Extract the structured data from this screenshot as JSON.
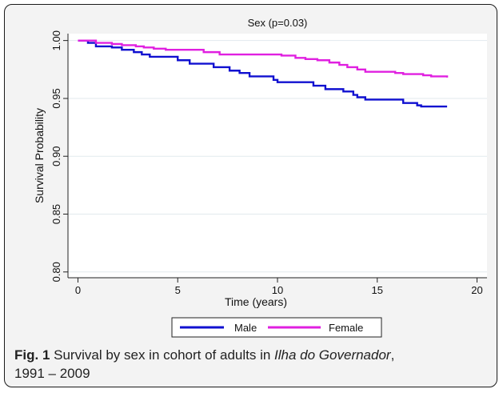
{
  "caption": {
    "label": "Fig. 1",
    "text_before": " Survival by sex in cohort of adults in ",
    "place": "Ilha do Governador",
    "text_after": ",",
    "years": "1991 – 2009"
  },
  "chart_data": {
    "type": "line",
    "title": "Sex (p=0.03)",
    "xlabel": "Time (years)",
    "ylabel": "Survival Probability",
    "xlim": [
      -0.5,
      20.5
    ],
    "ylim": [
      0.795,
      1.006
    ],
    "xticks": [
      0,
      5,
      10,
      15,
      20
    ],
    "yticks": [
      "0.80",
      "0.85",
      "0.90",
      "0.95",
      "1.00"
    ],
    "grid": true,
    "legend_position": "bottom",
    "series": [
      {
        "name": "Male",
        "color": "#1010d0",
        "step": true,
        "points": [
          [
            0,
            1.0
          ],
          [
            0.5,
            0.998
          ],
          [
            0.9,
            0.995
          ],
          [
            1.7,
            0.994
          ],
          [
            2.2,
            0.992
          ],
          [
            2.8,
            0.99
          ],
          [
            3.2,
            0.988
          ],
          [
            3.6,
            0.986
          ],
          [
            5.0,
            0.983
          ],
          [
            5.6,
            0.98
          ],
          [
            6.8,
            0.977
          ],
          [
            7.6,
            0.974
          ],
          [
            8.1,
            0.972
          ],
          [
            8.6,
            0.969
          ],
          [
            9.8,
            0.966
          ],
          [
            10.0,
            0.964
          ],
          [
            11.8,
            0.961
          ],
          [
            12.4,
            0.958
          ],
          [
            13.3,
            0.956
          ],
          [
            13.8,
            0.953
          ],
          [
            14.0,
            0.951
          ],
          [
            14.4,
            0.949
          ],
          [
            16.3,
            0.946
          ],
          [
            17.0,
            0.944
          ],
          [
            17.2,
            0.943
          ],
          [
            18.5,
            0.943
          ]
        ]
      },
      {
        "name": "Female",
        "color": "#e020e0",
        "step": true,
        "points": [
          [
            0,
            1.0
          ],
          [
            0.9,
            0.998
          ],
          [
            1.7,
            0.997
          ],
          [
            2.2,
            0.996
          ],
          [
            2.9,
            0.995
          ],
          [
            3.3,
            0.994
          ],
          [
            3.8,
            0.993
          ],
          [
            4.4,
            0.992
          ],
          [
            6.3,
            0.99
          ],
          [
            7.1,
            0.988
          ],
          [
            10.2,
            0.987
          ],
          [
            10.9,
            0.985
          ],
          [
            11.4,
            0.984
          ],
          [
            12.0,
            0.983
          ],
          [
            12.6,
            0.981
          ],
          [
            13.1,
            0.979
          ],
          [
            13.5,
            0.977
          ],
          [
            14.0,
            0.975
          ],
          [
            14.4,
            0.973
          ],
          [
            15.9,
            0.972
          ],
          [
            16.3,
            0.971
          ],
          [
            17.3,
            0.97
          ],
          [
            17.7,
            0.969
          ],
          [
            18.5,
            0.968
          ]
        ]
      }
    ]
  }
}
